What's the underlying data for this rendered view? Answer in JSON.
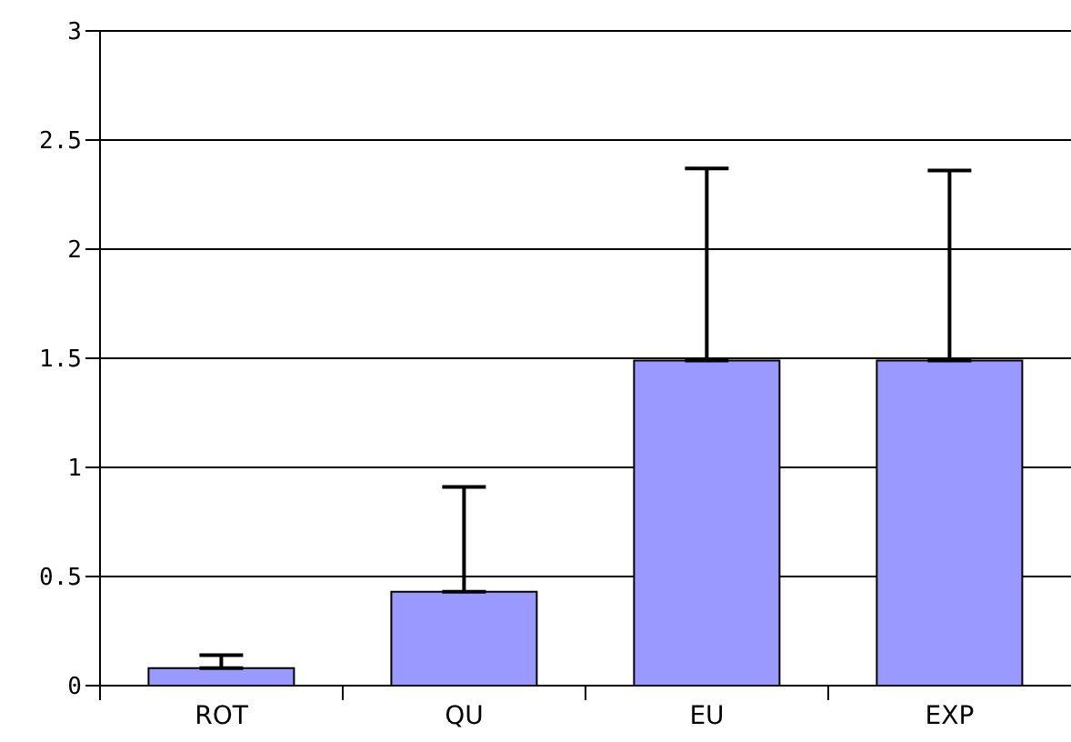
{
  "chart_data": {
    "type": "bar",
    "categories": [
      "ROT",
      "QU",
      "EU",
      "EXP"
    ],
    "values": [
      0.08,
      0.43,
      1.49,
      1.49
    ],
    "errors": [
      [
        0.08,
        0.14
      ],
      [
        0.43,
        0.91
      ],
      [
        1.49,
        2.37
      ],
      [
        1.49,
        2.36
      ]
    ],
    "color": "#9999ff",
    "ylim": [
      0,
      3
    ],
    "yticks": [
      0,
      0.5,
      1,
      1.5,
      2,
      2.5,
      3
    ],
    "grid": "y"
  }
}
